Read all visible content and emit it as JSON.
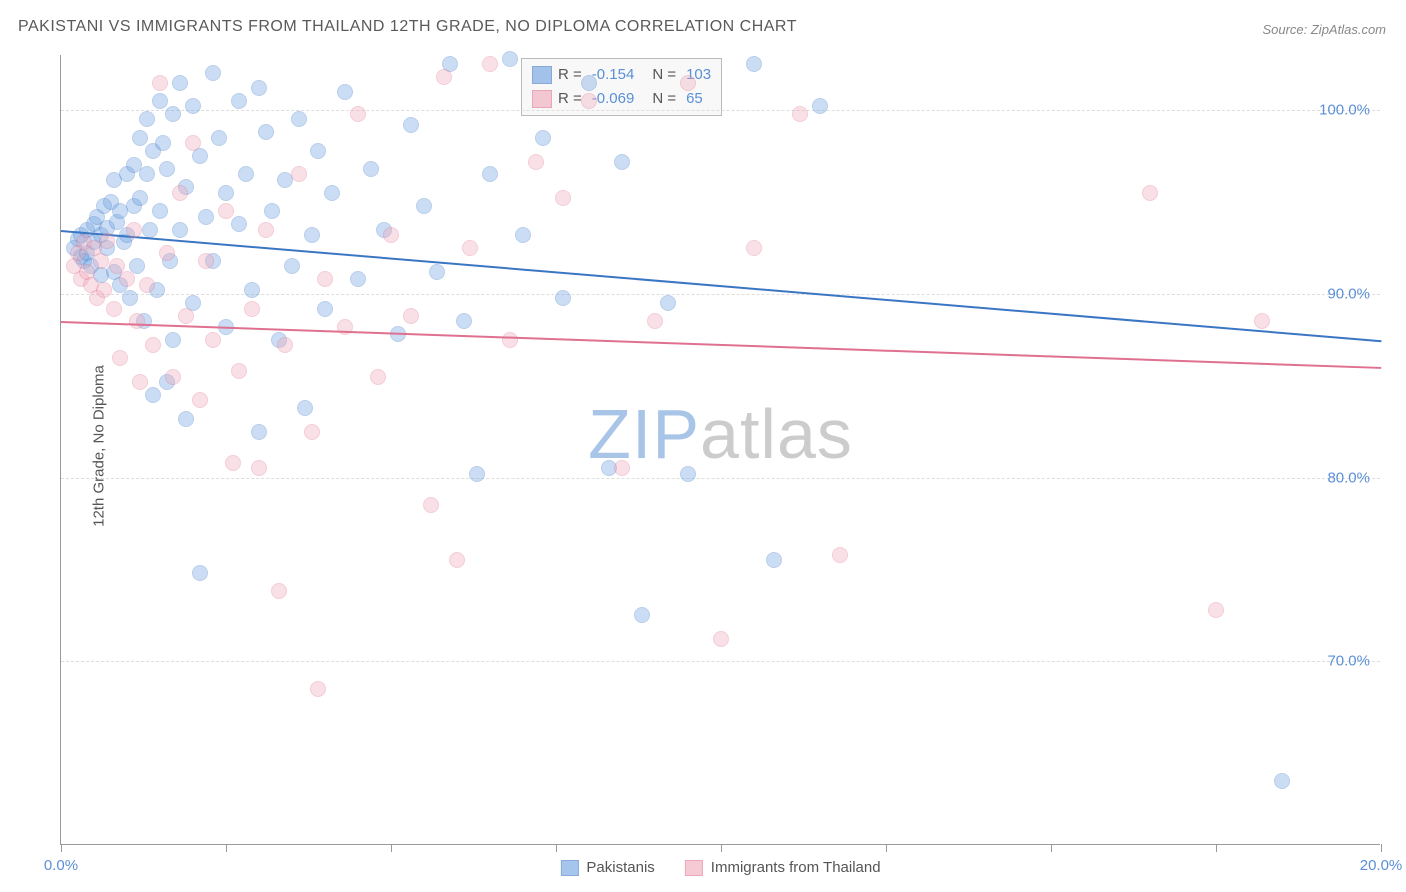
{
  "title": "PAKISTANI VS IMMIGRANTS FROM THAILAND 12TH GRADE, NO DIPLOMA CORRELATION CHART",
  "source": "Source: ZipAtlas.com",
  "y_axis_label": "12th Grade, No Diploma",
  "watermark_a": "ZIP",
  "watermark_b": "atlas",
  "chart": {
    "type": "scatter",
    "background_color": "#ffffff",
    "grid_color": "#dddddd",
    "axis_color": "#999999",
    "label_color": "#555555",
    "tick_label_color": "#5b8fd6",
    "title_fontsize": 16,
    "label_fontsize": 15,
    "tick_fontsize": 15,
    "x_range": [
      0,
      20
    ],
    "y_range": [
      60,
      103
    ],
    "y_gridlines": [
      70,
      80,
      90,
      100
    ],
    "y_tick_labels": [
      "70.0%",
      "80.0%",
      "90.0%",
      "100.0%"
    ],
    "x_ticks": [
      0,
      2.5,
      5,
      7.5,
      10,
      12.5,
      15,
      17.5,
      20
    ],
    "x_tick_labels": {
      "0": "0.0%",
      "20": "20.0%"
    },
    "point_radius": 8,
    "point_border_width": 1,
    "point_fill_opacity": 0.35,
    "line_width": 2
  },
  "series": [
    {
      "name": "Pakistanis",
      "color_fill": "#6b9fe0",
      "color_stroke": "#3b76c4",
      "R": "-0.154",
      "N": "103",
      "trend": {
        "x0": 0,
        "y0": 93.5,
        "x1": 20,
        "y1": 87.5
      },
      "points": [
        [
          0.2,
          92.5
        ],
        [
          0.25,
          93
        ],
        [
          0.3,
          92
        ],
        [
          0.3,
          93.2
        ],
        [
          0.35,
          91.8
        ],
        [
          0.4,
          93.5
        ],
        [
          0.4,
          92.2
        ],
        [
          0.45,
          91.5
        ],
        [
          0.5,
          93.8
        ],
        [
          0.5,
          92.8
        ],
        [
          0.55,
          94.2
        ],
        [
          0.6,
          93.2
        ],
        [
          0.6,
          91
        ],
        [
          0.65,
          94.8
        ],
        [
          0.7,
          92.5
        ],
        [
          0.7,
          93.6
        ],
        [
          0.75,
          95
        ],
        [
          0.8,
          91.2
        ],
        [
          0.8,
          96.2
        ],
        [
          0.85,
          93.9
        ],
        [
          0.9,
          90.5
        ],
        [
          0.9,
          94.5
        ],
        [
          0.95,
          92.8
        ],
        [
          1,
          96.5
        ],
        [
          1,
          93.2
        ],
        [
          1.05,
          89.8
        ],
        [
          1.1,
          97
        ],
        [
          1.1,
          94.8
        ],
        [
          1.15,
          91.5
        ],
        [
          1.2,
          98.5
        ],
        [
          1.2,
          95.2
        ],
        [
          1.25,
          88.5
        ],
        [
          1.3,
          99.5
        ],
        [
          1.3,
          96.5
        ],
        [
          1.35,
          93.5
        ],
        [
          1.4,
          84.5
        ],
        [
          1.4,
          97.8
        ],
        [
          1.45,
          90.2
        ],
        [
          1.5,
          100.5
        ],
        [
          1.5,
          94.5
        ],
        [
          1.55,
          98.2
        ],
        [
          1.6,
          85.2
        ],
        [
          1.6,
          96.8
        ],
        [
          1.65,
          91.8
        ],
        [
          1.7,
          99.8
        ],
        [
          1.7,
          87.5
        ],
        [
          1.8,
          101.5
        ],
        [
          1.8,
          93.5
        ],
        [
          1.9,
          95.8
        ],
        [
          1.9,
          83.2
        ],
        [
          2,
          100.2
        ],
        [
          2,
          89.5
        ],
        [
          2.1,
          74.8
        ],
        [
          2.1,
          97.5
        ],
        [
          2.2,
          94.2
        ],
        [
          2.3,
          102
        ],
        [
          2.3,
          91.8
        ],
        [
          2.4,
          98.5
        ],
        [
          2.5,
          95.5
        ],
        [
          2.5,
          88.2
        ],
        [
          2.7,
          100.5
        ],
        [
          2.7,
          93.8
        ],
        [
          2.8,
          96.5
        ],
        [
          2.9,
          90.2
        ],
        [
          3,
          82.5
        ],
        [
          3,
          101.2
        ],
        [
          3.1,
          98.8
        ],
        [
          3.2,
          94.5
        ],
        [
          3.3,
          87.5
        ],
        [
          3.4,
          96.2
        ],
        [
          3.5,
          91.5
        ],
        [
          3.6,
          99.5
        ],
        [
          3.7,
          83.8
        ],
        [
          3.8,
          93.2
        ],
        [
          3.9,
          97.8
        ],
        [
          4,
          89.2
        ],
        [
          4.1,
          95.5
        ],
        [
          4.3,
          101
        ],
        [
          4.5,
          90.8
        ],
        [
          4.7,
          96.8
        ],
        [
          4.9,
          93.5
        ],
        [
          5.1,
          87.8
        ],
        [
          5.3,
          99.2
        ],
        [
          5.5,
          94.8
        ],
        [
          5.7,
          91.2
        ],
        [
          5.9,
          102.5
        ],
        [
          6.1,
          88.5
        ],
        [
          6.3,
          80.2
        ],
        [
          6.5,
          96.5
        ],
        [
          6.8,
          102.8
        ],
        [
          7,
          93.2
        ],
        [
          7.3,
          98.5
        ],
        [
          7.6,
          89.8
        ],
        [
          8,
          101.5
        ],
        [
          8.3,
          80.5
        ],
        [
          8.5,
          97.2
        ],
        [
          8.8,
          72.5
        ],
        [
          9.2,
          89.5
        ],
        [
          9.5,
          80.2
        ],
        [
          10.5,
          102.5
        ],
        [
          10.8,
          75.5
        ],
        [
          11.5,
          100.2
        ],
        [
          18.5,
          63.5
        ]
      ]
    },
    {
      "name": "Immigrants from Thailand",
      "color_fill": "#f0a8ba",
      "color_stroke": "#e07090",
      "R": "-0.069",
      "N": "65",
      "trend": {
        "x0": 0,
        "y0": 88.5,
        "x1": 20,
        "y1": 86.0
      },
      "points": [
        [
          0.2,
          91.5
        ],
        [
          0.25,
          92.2
        ],
        [
          0.3,
          90.8
        ],
        [
          0.35,
          92.8
        ],
        [
          0.4,
          91.2
        ],
        [
          0.45,
          90.5
        ],
        [
          0.5,
          92.5
        ],
        [
          0.55,
          89.8
        ],
        [
          0.6,
          91.8
        ],
        [
          0.65,
          90.2
        ],
        [
          0.7,
          92.9
        ],
        [
          0.8,
          89.2
        ],
        [
          0.85,
          91.5
        ],
        [
          0.9,
          86.5
        ],
        [
          1,
          90.8
        ],
        [
          1.1,
          93.5
        ],
        [
          1.15,
          88.5
        ],
        [
          1.2,
          85.2
        ],
        [
          1.3,
          90.5
        ],
        [
          1.4,
          87.2
        ],
        [
          1.5,
          101.5
        ],
        [
          1.6,
          92.2
        ],
        [
          1.7,
          85.5
        ],
        [
          1.8,
          95.5
        ],
        [
          1.9,
          88.8
        ],
        [
          2,
          98.2
        ],
        [
          2.1,
          84.2
        ],
        [
          2.2,
          91.8
        ],
        [
          2.3,
          87.5
        ],
        [
          2.5,
          94.5
        ],
        [
          2.6,
          80.8
        ],
        [
          2.7,
          85.8
        ],
        [
          2.9,
          89.2
        ],
        [
          3,
          80.5
        ],
        [
          3.1,
          93.5
        ],
        [
          3.3,
          73.8
        ],
        [
          3.4,
          87.2
        ],
        [
          3.6,
          96.5
        ],
        [
          3.8,
          82.5
        ],
        [
          3.9,
          68.5
        ],
        [
          4,
          90.8
        ],
        [
          4.3,
          88.2
        ],
        [
          4.5,
          99.8
        ],
        [
          4.8,
          85.5
        ],
        [
          5,
          93.2
        ],
        [
          5.3,
          88.8
        ],
        [
          5.6,
          78.5
        ],
        [
          5.8,
          101.8
        ],
        [
          6,
          75.5
        ],
        [
          6.2,
          92.5
        ],
        [
          6.5,
          102.5
        ],
        [
          6.8,
          87.5
        ],
        [
          7.2,
          97.2
        ],
        [
          7.6,
          95.2
        ],
        [
          8,
          100.5
        ],
        [
          8.5,
          80.5
        ],
        [
          9,
          88.5
        ],
        [
          9.5,
          101.5
        ],
        [
          10,
          71.2
        ],
        [
          10.5,
          92.5
        ],
        [
          11.2,
          99.8
        ],
        [
          11.8,
          75.8
        ],
        [
          16.5,
          95.5
        ],
        [
          17.5,
          72.8
        ],
        [
          18.2,
          88.5
        ]
      ]
    }
  ],
  "legend": {
    "r_label": "R =",
    "n_label": "N ="
  },
  "bottom_legend": [
    {
      "label": "Pakistanis",
      "fill": "#6b9fe0",
      "stroke": "#3b76c4"
    },
    {
      "label": "Immigrants from Thailand",
      "fill": "#f0a8ba",
      "stroke": "#e07090"
    }
  ]
}
